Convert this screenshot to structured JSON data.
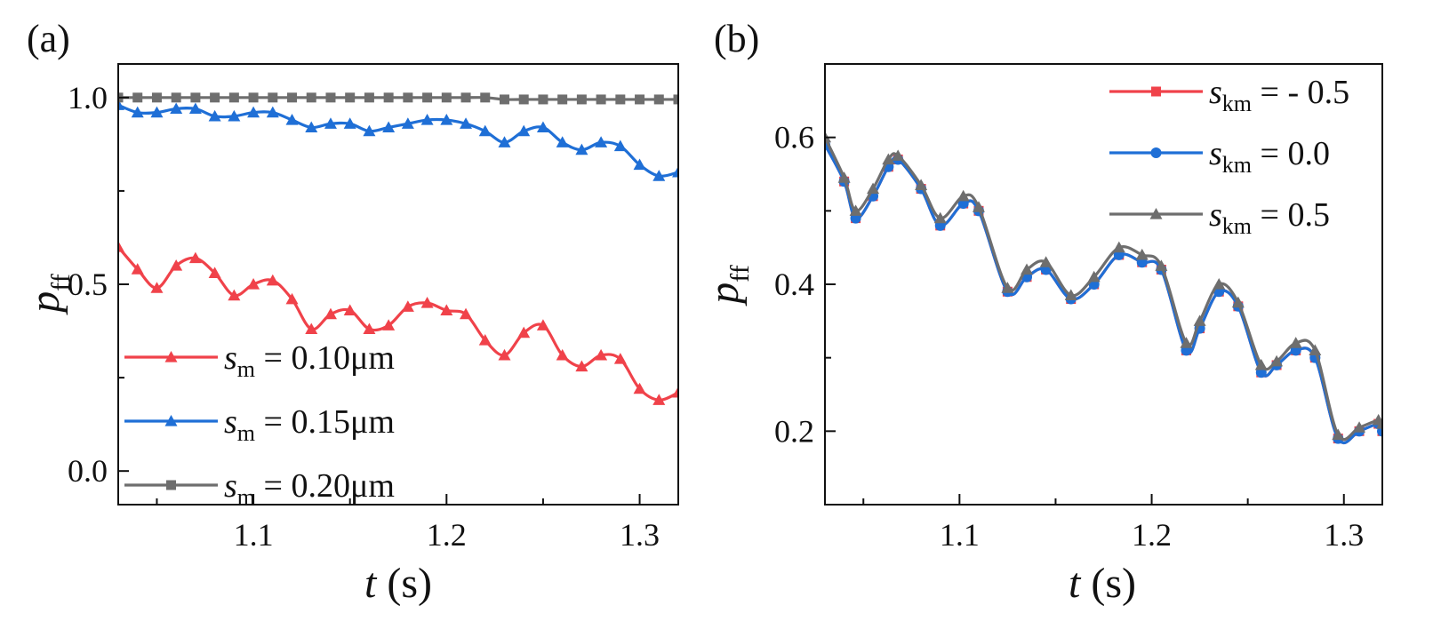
{
  "chart_data": [
    {
      "type": "line",
      "panel": "(a)",
      "xlabel": "t (s)",
      "ylabel": "p_ff",
      "xlim": [
        1.03,
        1.32
      ],
      "ylim": [
        -0.09,
        1.09
      ],
      "xticks": [
        1.1,
        1.2,
        1.3
      ],
      "yticks": [
        0.0,
        0.5,
        1.0
      ],
      "xtick_labels": [
        "1.1",
        "1.2",
        "1.3"
      ],
      "ytick_labels": [
        "0.0",
        "0.5",
        "1.0"
      ],
      "legend_position": "bottom-left",
      "series": [
        {
          "name": "s_m = 0.10μm",
          "legend_var": "s",
          "legend_sub": "m",
          "legend_rest": "= 0.10μm",
          "color": "#f0424a",
          "marker": "triangle",
          "x": [
            1.03,
            1.04,
            1.05,
            1.06,
            1.07,
            1.08,
            1.09,
            1.1,
            1.11,
            1.12,
            1.13,
            1.14,
            1.15,
            1.16,
            1.17,
            1.18,
            1.19,
            1.2,
            1.21,
            1.22,
            1.23,
            1.24,
            1.25,
            1.26,
            1.27,
            1.28,
            1.29,
            1.3,
            1.31,
            1.32
          ],
          "y": [
            0.6,
            0.54,
            0.49,
            0.55,
            0.57,
            0.53,
            0.47,
            0.5,
            0.51,
            0.46,
            0.38,
            0.42,
            0.43,
            0.38,
            0.39,
            0.44,
            0.45,
            0.43,
            0.42,
            0.35,
            0.31,
            0.37,
            0.39,
            0.31,
            0.28,
            0.31,
            0.3,
            0.22,
            0.19,
            0.21
          ]
        },
        {
          "name": "s_m = 0.15μm",
          "legend_var": "s",
          "legend_sub": "m",
          "legend_rest": "= 0.15μm",
          "color": "#1f6fd6",
          "marker": "triangle",
          "x": [
            1.03,
            1.04,
            1.05,
            1.06,
            1.07,
            1.08,
            1.09,
            1.1,
            1.11,
            1.12,
            1.13,
            1.14,
            1.15,
            1.16,
            1.17,
            1.18,
            1.19,
            1.2,
            1.21,
            1.22,
            1.23,
            1.24,
            1.25,
            1.26,
            1.27,
            1.28,
            1.29,
            1.3,
            1.31,
            1.32
          ],
          "y": [
            0.98,
            0.96,
            0.96,
            0.97,
            0.97,
            0.95,
            0.95,
            0.96,
            0.96,
            0.94,
            0.92,
            0.93,
            0.93,
            0.91,
            0.92,
            0.93,
            0.94,
            0.94,
            0.93,
            0.91,
            0.88,
            0.91,
            0.92,
            0.88,
            0.86,
            0.88,
            0.87,
            0.82,
            0.79,
            0.8
          ]
        },
        {
          "name": "s_m = 0.20μm",
          "legend_var": "s",
          "legend_sub": "m",
          "legend_rest": "= 0.20μm",
          "color": "#6e6e6e",
          "marker": "square",
          "x": [
            1.03,
            1.04,
            1.05,
            1.06,
            1.07,
            1.08,
            1.09,
            1.1,
            1.11,
            1.12,
            1.13,
            1.14,
            1.15,
            1.16,
            1.17,
            1.18,
            1.19,
            1.2,
            1.21,
            1.22,
            1.23,
            1.24,
            1.25,
            1.26,
            1.27,
            1.28,
            1.29,
            1.3,
            1.31,
            1.32
          ],
          "y": [
            1.0,
            1.0,
            1.0,
            1.0,
            1.0,
            1.0,
            1.0,
            1.0,
            1.0,
            1.0,
            1.0,
            1.0,
            1.0,
            1.0,
            1.0,
            1.0,
            1.0,
            1.0,
            1.0,
            1.0,
            0.995,
            0.995,
            0.995,
            0.995,
            0.995,
            0.995,
            0.995,
            0.995,
            0.995,
            0.995
          ]
        }
      ]
    },
    {
      "type": "line",
      "panel": "(b)",
      "xlabel": "t (s)",
      "ylabel": "p_ff",
      "xlim": [
        1.03,
        1.32
      ],
      "ylim": [
        0.1,
        0.7
      ],
      "xticks": [
        1.1,
        1.2,
        1.3
      ],
      "yticks": [
        0.2,
        0.4,
        0.6
      ],
      "xtick_labels": [
        "1.1",
        "1.2",
        "1.3"
      ],
      "ytick_labels": [
        "0.2",
        "0.4",
        "0.6"
      ],
      "legend_position": "top-right",
      "series": [
        {
          "name": "s_km = - 0.5",
          "legend_var": "s",
          "legend_sub": "km",
          "legend_rest": "= - 0.5",
          "color": "#f0424a",
          "marker": "square",
          "x": [
            1.03,
            1.04,
            1.046,
            1.055,
            1.063,
            1.068,
            1.08,
            1.09,
            1.102,
            1.11,
            1.125,
            1.135,
            1.145,
            1.158,
            1.17,
            1.183,
            1.195,
            1.205,
            1.218,
            1.225,
            1.235,
            1.245,
            1.257,
            1.265,
            1.275,
            1.285,
            1.297,
            1.308,
            1.318,
            1.32
          ],
          "y": [
            0.59,
            0.54,
            0.49,
            0.52,
            0.56,
            0.57,
            0.53,
            0.48,
            0.51,
            0.5,
            0.39,
            0.41,
            0.42,
            0.38,
            0.4,
            0.44,
            0.43,
            0.42,
            0.31,
            0.34,
            0.39,
            0.37,
            0.28,
            0.29,
            0.31,
            0.3,
            0.19,
            0.2,
            0.21,
            0.2
          ]
        },
        {
          "name": "s_km = 0.0",
          "legend_var": "s",
          "legend_sub": "km",
          "legend_rest": "= 0.0",
          "color": "#1f6fd6",
          "marker": "circle",
          "x": [
            1.03,
            1.04,
            1.046,
            1.055,
            1.063,
            1.068,
            1.08,
            1.09,
            1.102,
            1.11,
            1.125,
            1.135,
            1.145,
            1.158,
            1.17,
            1.183,
            1.195,
            1.205,
            1.218,
            1.225,
            1.235,
            1.245,
            1.257,
            1.265,
            1.275,
            1.285,
            1.297,
            1.308,
            1.318,
            1.32
          ],
          "y": [
            0.59,
            0.54,
            0.49,
            0.52,
            0.56,
            0.57,
            0.53,
            0.48,
            0.51,
            0.5,
            0.39,
            0.41,
            0.42,
            0.38,
            0.4,
            0.44,
            0.43,
            0.42,
            0.31,
            0.34,
            0.39,
            0.37,
            0.28,
            0.29,
            0.31,
            0.3,
            0.19,
            0.2,
            0.21,
            0.2
          ]
        },
        {
          "name": "s_km = 0.5",
          "legend_var": "s",
          "legend_sub": "km",
          "legend_rest": "= 0.5",
          "color": "#6e6e6e",
          "marker": "triangle",
          "x": [
            1.03,
            1.04,
            1.046,
            1.055,
            1.063,
            1.068,
            1.08,
            1.09,
            1.102,
            1.11,
            1.125,
            1.135,
            1.145,
            1.158,
            1.17,
            1.183,
            1.195,
            1.205,
            1.218,
            1.225,
            1.235,
            1.245,
            1.257,
            1.265,
            1.275,
            1.285,
            1.297,
            1.308,
            1.318,
            1.32
          ],
          "y": [
            0.6,
            0.545,
            0.5,
            0.53,
            0.57,
            0.575,
            0.535,
            0.49,
            0.52,
            0.505,
            0.395,
            0.42,
            0.43,
            0.385,
            0.41,
            0.45,
            0.44,
            0.425,
            0.32,
            0.35,
            0.4,
            0.375,
            0.29,
            0.295,
            0.32,
            0.31,
            0.195,
            0.205,
            0.215,
            0.21
          ]
        }
      ]
    }
  ]
}
